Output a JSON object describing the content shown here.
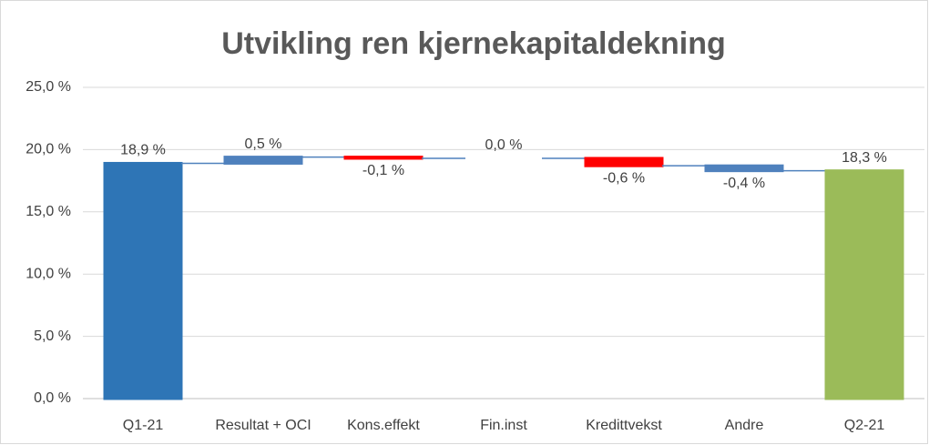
{
  "chart_data": {
    "type": "waterfall",
    "title": "Utvikling ren kjernekapitaldekning",
    "categories": [
      "Q1-21",
      "Resultat + OCI",
      "Kons.effekt",
      "Fin.inst",
      "Kredittvekst",
      "Andre",
      "Q2-21"
    ],
    "values": [
      18.9,
      0.5,
      -0.1,
      0.0,
      -0.6,
      -0.4,
      18.3
    ],
    "value_labels": [
      "18,9 %",
      "0,5 %",
      "-0,1 %",
      "0,0 %",
      "-0,6 %",
      "-0,4 %",
      "18,3 %"
    ],
    "is_total": [
      true,
      false,
      false,
      false,
      false,
      false,
      true
    ],
    "colors": [
      "#2e75b6",
      "#4f81bd",
      "#ff0000",
      "#4f81bd",
      "#ff0000",
      "#4f81bd",
      "#9bbb59"
    ],
    "ylim": [
      0,
      25
    ],
    "yticks": [
      {
        "value": 0,
        "label": "0,0 %"
      },
      {
        "value": 5,
        "label": "5,0 %"
      },
      {
        "value": 10,
        "label": "10,0 %"
      },
      {
        "value": 15,
        "label": "15,0 %"
      },
      {
        "value": 20,
        "label": "20,0 %"
      },
      {
        "value": 25,
        "label": "25,0 %"
      }
    ],
    "grid": true
  }
}
